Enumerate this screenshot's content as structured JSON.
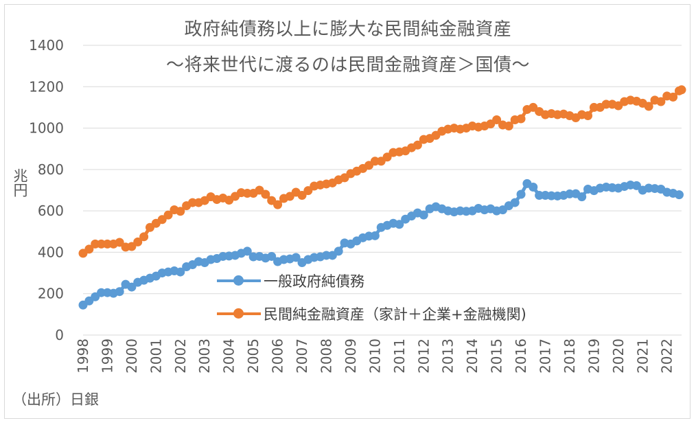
{
  "chart_data": {
    "type": "line",
    "title": "政府純債務以上に膨大な民間純金融資産",
    "subtitle": "～将来世代に渡るのは民間金融資産＞国債～",
    "ylabel": "兆円",
    "source": "（出所）日銀",
    "ylim": [
      0,
      1400
    ],
    "yticks": [
      0,
      200,
      400,
      600,
      800,
      1000,
      1200,
      1400
    ],
    "xlim": [
      1998,
      2022.6
    ],
    "xticks": [
      "1998",
      "1999",
      "2000",
      "2001",
      "2002",
      "2003",
      "2004",
      "2005",
      "2006",
      "2007",
      "2008",
      "2009",
      "2010",
      "2011",
      "2012",
      "2013",
      "2014",
      "2015",
      "2016",
      "2017",
      "2018",
      "2019",
      "2020",
      "2021",
      "2022"
    ],
    "grid": true,
    "legend_position": "center",
    "series": [
      {
        "name": "一般政府純債務",
        "color": "#5b9bd5",
        "points": [
          [
            1998.0,
            145
          ],
          [
            1998.25,
            165
          ],
          [
            1998.5,
            185
          ],
          [
            1998.75,
            205
          ],
          [
            1999.0,
            205
          ],
          [
            1999.25,
            202
          ],
          [
            1999.5,
            210
          ],
          [
            1999.75,
            245
          ],
          [
            2000.0,
            232
          ],
          [
            2000.25,
            255
          ],
          [
            2000.5,
            265
          ],
          [
            2000.75,
            275
          ],
          [
            2001.0,
            285
          ],
          [
            2001.25,
            300
          ],
          [
            2001.5,
            305
          ],
          [
            2001.75,
            310
          ],
          [
            2002.0,
            305
          ],
          [
            2002.25,
            330
          ],
          [
            2002.5,
            340
          ],
          [
            2002.75,
            355
          ],
          [
            2003.0,
            350
          ],
          [
            2003.25,
            365
          ],
          [
            2003.5,
            370
          ],
          [
            2003.75,
            380
          ],
          [
            2004.0,
            382
          ],
          [
            2004.25,
            385
          ],
          [
            2004.5,
            395
          ],
          [
            2004.75,
            405
          ],
          [
            2005.0,
            378
          ],
          [
            2005.25,
            380
          ],
          [
            2005.5,
            372
          ],
          [
            2005.75,
            380
          ],
          [
            2006.0,
            355
          ],
          [
            2006.25,
            365
          ],
          [
            2006.5,
            368
          ],
          [
            2006.75,
            375
          ],
          [
            2007.0,
            350
          ],
          [
            2007.25,
            365
          ],
          [
            2007.5,
            375
          ],
          [
            2007.75,
            378
          ],
          [
            2008.0,
            385
          ],
          [
            2008.25,
            385
          ],
          [
            2008.5,
            405
          ],
          [
            2008.75,
            445
          ],
          [
            2009.0,
            440
          ],
          [
            2009.25,
            455
          ],
          [
            2009.5,
            470
          ],
          [
            2009.75,
            478
          ],
          [
            2010.0,
            480
          ],
          [
            2010.25,
            520
          ],
          [
            2010.5,
            530
          ],
          [
            2010.75,
            540
          ],
          [
            2011.0,
            535
          ],
          [
            2011.25,
            560
          ],
          [
            2011.5,
            575
          ],
          [
            2011.75,
            590
          ],
          [
            2012.0,
            580
          ],
          [
            2012.25,
            610
          ],
          [
            2012.5,
            620
          ],
          [
            2012.75,
            610
          ],
          [
            2013.0,
            600
          ],
          [
            2013.25,
            595
          ],
          [
            2013.5,
            600
          ],
          [
            2013.75,
            598
          ],
          [
            2014.0,
            600
          ],
          [
            2014.25,
            612
          ],
          [
            2014.5,
            605
          ],
          [
            2014.75,
            610
          ],
          [
            2015.0,
            600
          ],
          [
            2015.25,
            605
          ],
          [
            2015.5,
            625
          ],
          [
            2015.75,
            640
          ],
          [
            2016.0,
            680
          ],
          [
            2016.25,
            732
          ],
          [
            2016.5,
            715
          ],
          [
            2016.75,
            675
          ],
          [
            2017.0,
            675
          ],
          [
            2017.25,
            673
          ],
          [
            2017.5,
            672
          ],
          [
            2017.75,
            675
          ],
          [
            2018.0,
            682
          ],
          [
            2018.25,
            683
          ],
          [
            2018.5,
            668
          ],
          [
            2018.75,
            705
          ],
          [
            2019.0,
            698
          ],
          [
            2019.25,
            710
          ],
          [
            2019.5,
            715
          ],
          [
            2019.75,
            712
          ],
          [
            2020.0,
            710
          ],
          [
            2020.25,
            718
          ],
          [
            2020.5,
            725
          ],
          [
            2020.75,
            722
          ],
          [
            2021.0,
            700
          ],
          [
            2021.25,
            710
          ],
          [
            2021.5,
            708
          ],
          [
            2021.75,
            705
          ],
          [
            2022.0,
            690
          ],
          [
            2022.25,
            685
          ],
          [
            2022.5,
            678
          ]
        ]
      },
      {
        "name": "民間純金融資産（家計＋企業+金融機関)",
        "color": "#ed7d31",
        "points": [
          [
            1998.0,
            395
          ],
          [
            1998.25,
            415
          ],
          [
            1998.5,
            440
          ],
          [
            1998.75,
            440
          ],
          [
            1999.0,
            440
          ],
          [
            1999.25,
            440
          ],
          [
            1999.5,
            448
          ],
          [
            1999.75,
            425
          ],
          [
            2000.0,
            428
          ],
          [
            2000.25,
            450
          ],
          [
            2000.5,
            475
          ],
          [
            2000.75,
            520
          ],
          [
            2001.0,
            540
          ],
          [
            2001.25,
            558
          ],
          [
            2001.5,
            580
          ],
          [
            2001.75,
            605
          ],
          [
            2002.0,
            598
          ],
          [
            2002.25,
            625
          ],
          [
            2002.5,
            640
          ],
          [
            2002.75,
            640
          ],
          [
            2003.0,
            650
          ],
          [
            2003.25,
            668
          ],
          [
            2003.5,
            655
          ],
          [
            2003.75,
            662
          ],
          [
            2004.0,
            652
          ],
          [
            2004.25,
            670
          ],
          [
            2004.5,
            688
          ],
          [
            2004.75,
            685
          ],
          [
            2005.0,
            685
          ],
          [
            2005.25,
            700
          ],
          [
            2005.5,
            680
          ],
          [
            2005.75,
            650
          ],
          [
            2006.0,
            630
          ],
          [
            2006.25,
            660
          ],
          [
            2006.5,
            670
          ],
          [
            2006.75,
            690
          ],
          [
            2007.0,
            675
          ],
          [
            2007.25,
            698
          ],
          [
            2007.5,
            720
          ],
          [
            2007.75,
            725
          ],
          [
            2008.0,
            730
          ],
          [
            2008.25,
            735
          ],
          [
            2008.5,
            750
          ],
          [
            2008.75,
            760
          ],
          [
            2009.0,
            780
          ],
          [
            2009.25,
            792
          ],
          [
            2009.5,
            805
          ],
          [
            2009.75,
            820
          ],
          [
            2010.0,
            840
          ],
          [
            2010.25,
            840
          ],
          [
            2010.5,
            860
          ],
          [
            2010.75,
            882
          ],
          [
            2011.0,
            885
          ],
          [
            2011.25,
            890
          ],
          [
            2011.5,
            905
          ],
          [
            2011.75,
            918
          ],
          [
            2012.0,
            945
          ],
          [
            2012.25,
            950
          ],
          [
            2012.5,
            965
          ],
          [
            2012.75,
            985
          ],
          [
            2013.0,
            995
          ],
          [
            2013.25,
            1000
          ],
          [
            2013.5,
            995
          ],
          [
            2013.75,
            1000
          ],
          [
            2014.0,
            1010
          ],
          [
            2014.25,
            1005
          ],
          [
            2014.5,
            1010
          ],
          [
            2014.75,
            1020
          ],
          [
            2015.0,
            1040
          ],
          [
            2015.25,
            1015
          ],
          [
            2015.5,
            1010
          ],
          [
            2015.75,
            1040
          ],
          [
            2016.0,
            1045
          ],
          [
            2016.25,
            1090
          ],
          [
            2016.5,
            1100
          ],
          [
            2016.75,
            1080
          ],
          [
            2017.0,
            1065
          ],
          [
            2017.25,
            1070
          ],
          [
            2017.5,
            1065
          ],
          [
            2017.75,
            1068
          ],
          [
            2018.0,
            1060
          ],
          [
            2018.25,
            1050
          ],
          [
            2018.5,
            1065
          ],
          [
            2018.75,
            1060
          ],
          [
            2019.0,
            1100
          ],
          [
            2019.25,
            1100
          ],
          [
            2019.5,
            1115
          ],
          [
            2019.75,
            1115
          ],
          [
            2020.0,
            1108
          ],
          [
            2020.25,
            1128
          ],
          [
            2020.5,
            1135
          ],
          [
            2020.75,
            1130
          ],
          [
            2021.0,
            1120
          ],
          [
            2021.25,
            1105
          ],
          [
            2021.5,
            1135
          ],
          [
            2021.75,
            1128
          ],
          [
            2022.0,
            1155
          ],
          [
            2022.25,
            1150
          ],
          [
            2022.5,
            1180
          ],
          [
            2022.6,
            1185
          ]
        ]
      }
    ]
  }
}
